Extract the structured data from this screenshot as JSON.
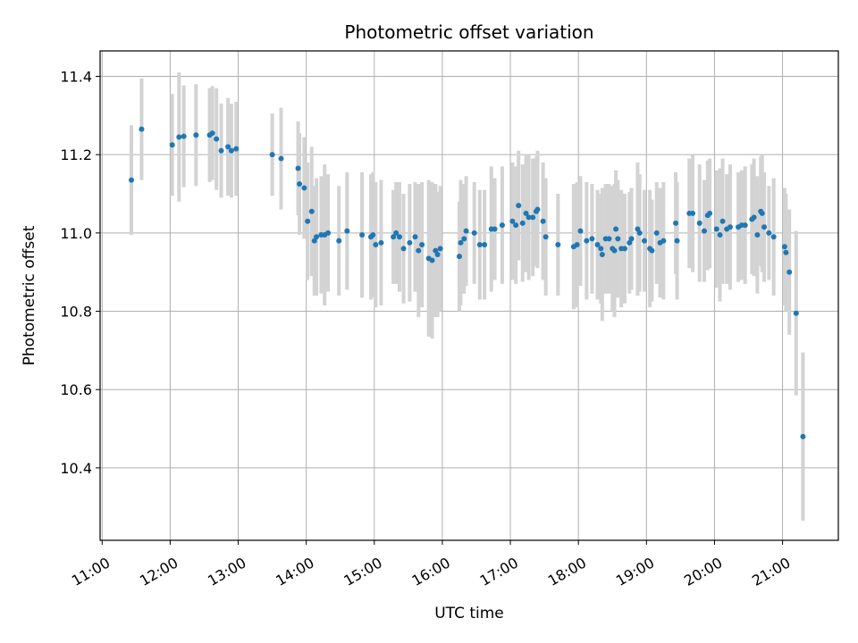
{
  "chart_data": {
    "type": "scatter",
    "title": "Photometric offset variation",
    "xlabel": "UTC time",
    "ylabel": "Photometric offset",
    "xlim": [
      10.97,
      21.82
    ],
    "ylim": [
      10.215,
      11.465
    ],
    "xticks": [
      {
        "value": 11,
        "label": "11:00"
      },
      {
        "value": 12,
        "label": "12:00"
      },
      {
        "value": 13,
        "label": "13:00"
      },
      {
        "value": 14,
        "label": "14:00"
      },
      {
        "value": 15,
        "label": "15:00"
      },
      {
        "value": 16,
        "label": "16:00"
      },
      {
        "value": 17,
        "label": "17:00"
      },
      {
        "value": 18,
        "label": "18:00"
      },
      {
        "value": 19,
        "label": "19:00"
      },
      {
        "value": 20,
        "label": "20:00"
      },
      {
        "value": 21,
        "label": "21:00"
      }
    ],
    "yticks": [
      {
        "value": 10.4,
        "label": "10.4"
      },
      {
        "value": 10.6,
        "label": "10.6"
      },
      {
        "value": 10.8,
        "label": "10.8"
      },
      {
        "value": 11.0,
        "label": "11.0"
      },
      {
        "value": 11.2,
        "label": "11.2"
      },
      {
        "value": 11.4,
        "label": "11.4"
      }
    ],
    "grid": true,
    "colors": {
      "point": "#1f77b4",
      "errorbar": "#d3d3d3",
      "grid": "#b0b0b0"
    },
    "series": [
      {
        "x_unit": "hours UTC",
        "points": [
          [
            11.43,
            11.135,
            0.14
          ],
          [
            11.58,
            11.265,
            0.13
          ],
          [
            12.03,
            11.225,
            0.13
          ],
          [
            12.13,
            11.245,
            0.165
          ],
          [
            12.2,
            11.247,
            0.13
          ],
          [
            12.38,
            11.25,
            0.13
          ],
          [
            12.58,
            11.25,
            0.12
          ],
          [
            12.62,
            11.255,
            0.12
          ],
          [
            12.68,
            11.24,
            0.13
          ],
          [
            12.75,
            11.21,
            0.12
          ],
          [
            12.85,
            11.22,
            0.125
          ],
          [
            12.9,
            11.21,
            0.12
          ],
          [
            12.97,
            11.215,
            0.12
          ],
          [
            13.5,
            11.2,
            0.105
          ],
          [
            13.63,
            11.19,
            0.13
          ],
          [
            13.88,
            11.165,
            0.12
          ],
          [
            13.9,
            11.125,
            0.13
          ],
          [
            13.97,
            11.115,
            0.13
          ],
          [
            14.02,
            11.03,
            0.15
          ],
          [
            14.08,
            11.055,
            0.165
          ],
          [
            14.12,
            10.98,
            0.14
          ],
          [
            14.15,
            10.99,
            0.15
          ],
          [
            14.22,
            10.995,
            0.15
          ],
          [
            14.27,
            10.995,
            0.18
          ],
          [
            14.32,
            11.0,
            0.15
          ],
          [
            14.48,
            10.98,
            0.14
          ],
          [
            14.6,
            11.005,
            0.15
          ],
          [
            14.82,
            10.995,
            0.16
          ],
          [
            14.95,
            10.99,
            0.16
          ],
          [
            14.98,
            10.995,
            0.16
          ],
          [
            15.02,
            10.97,
            0.16
          ],
          [
            15.1,
            10.975,
            0.16
          ],
          [
            15.28,
            10.99,
            0.12
          ],
          [
            15.32,
            11.0,
            0.13
          ],
          [
            15.37,
            10.99,
            0.14
          ],
          [
            15.43,
            10.96,
            0.14
          ],
          [
            15.52,
            10.975,
            0.15
          ],
          [
            15.6,
            10.99,
            0.14
          ],
          [
            15.65,
            10.955,
            0.17
          ],
          [
            15.7,
            10.97,
            0.16
          ],
          [
            15.8,
            10.935,
            0.2
          ],
          [
            15.85,
            10.93,
            0.2
          ],
          [
            15.9,
            10.955,
            0.17
          ],
          [
            15.93,
            10.945,
            0.16
          ],
          [
            15.97,
            10.96,
            0.16
          ],
          [
            16.25,
            10.94,
            0.14
          ],
          [
            16.27,
            10.975,
            0.16
          ],
          [
            16.32,
            10.985,
            0.14
          ],
          [
            16.35,
            11.005,
            0.14
          ],
          [
            16.47,
            11.0,
            0.13
          ],
          [
            16.55,
            10.97,
            0.14
          ],
          [
            16.62,
            10.97,
            0.14
          ],
          [
            16.72,
            11.01,
            0.16
          ],
          [
            16.77,
            11.01,
            0.13
          ],
          [
            16.88,
            11.02,
            0.15
          ],
          [
            17.03,
            11.03,
            0.15
          ],
          [
            17.08,
            11.02,
            0.15
          ],
          [
            17.12,
            11.07,
            0.14
          ],
          [
            17.18,
            11.025,
            0.15
          ],
          [
            17.23,
            11.05,
            0.15
          ],
          [
            17.27,
            11.04,
            0.16
          ],
          [
            17.33,
            11.04,
            0.15
          ],
          [
            17.38,
            11.055,
            0.14
          ],
          [
            17.4,
            11.06,
            0.15
          ],
          [
            17.48,
            11.03,
            0.15
          ],
          [
            17.52,
            10.99,
            0.15
          ],
          [
            17.7,
            10.97,
            0.13
          ],
          [
            17.93,
            10.965,
            0.16
          ],
          [
            17.98,
            10.97,
            0.16
          ],
          [
            18.03,
            11.005,
            0.14
          ],
          [
            18.12,
            10.98,
            0.15
          ],
          [
            18.2,
            10.985,
            0.14
          ],
          [
            18.28,
            10.97,
            0.14
          ],
          [
            18.33,
            10.96,
            0.14
          ],
          [
            18.35,
            10.945,
            0.17
          ],
          [
            18.4,
            10.985,
            0.14
          ],
          [
            18.45,
            10.985,
            0.14
          ],
          [
            18.5,
            10.96,
            0.16
          ],
          [
            18.53,
            10.955,
            0.17
          ],
          [
            18.55,
            11.01,
            0.15
          ],
          [
            18.58,
            10.985,
            0.15
          ],
          [
            18.63,
            10.96,
            0.15
          ],
          [
            18.68,
            10.96,
            0.14
          ],
          [
            18.75,
            10.975,
            0.13
          ],
          [
            18.78,
            10.985,
            0.13
          ],
          [
            18.87,
            11.01,
            0.17
          ],
          [
            18.9,
            11.0,
            0.15
          ],
          [
            18.97,
            10.98,
            0.13
          ],
          [
            19.05,
            10.96,
            0.15
          ],
          [
            19.08,
            10.955,
            0.13
          ],
          [
            19.15,
            11.0,
            0.13
          ],
          [
            19.2,
            10.975,
            0.14
          ],
          [
            19.25,
            10.98,
            0.15
          ],
          [
            19.43,
            11.025,
            0.13
          ],
          [
            19.45,
            10.98,
            0.15
          ],
          [
            19.63,
            11.05,
            0.14
          ],
          [
            19.68,
            11.05,
            0.15
          ],
          [
            19.78,
            11.025,
            0.15
          ],
          [
            19.85,
            11.005,
            0.13
          ],
          [
            19.9,
            11.045,
            0.14
          ],
          [
            19.93,
            11.05,
            0.14
          ],
          [
            20.03,
            11.01,
            0.15
          ],
          [
            20.08,
            10.995,
            0.17
          ],
          [
            20.12,
            11.03,
            0.16
          ],
          [
            20.18,
            11.01,
            0.14
          ],
          [
            20.23,
            11.015,
            0.16
          ],
          [
            20.35,
            11.015,
            0.14
          ],
          [
            20.4,
            11.02,
            0.14
          ],
          [
            20.45,
            11.02,
            0.15
          ],
          [
            20.55,
            11.035,
            0.14
          ],
          [
            20.58,
            11.04,
            0.15
          ],
          [
            20.63,
            10.995,
            0.15
          ],
          [
            20.68,
            11.055,
            0.14
          ],
          [
            20.7,
            11.05,
            0.15
          ],
          [
            20.73,
            11.015,
            0.14
          ],
          [
            20.8,
            11.0,
            0.12
          ],
          [
            20.87,
            10.99,
            0.15
          ],
          [
            21.03,
            10.965,
            0.15
          ],
          [
            21.05,
            10.95,
            0.15
          ],
          [
            21.1,
            10.9,
            0.16
          ],
          [
            21.2,
            10.795,
            0.21
          ],
          [
            21.3,
            10.48,
            0.215
          ]
        ]
      }
    ]
  }
}
